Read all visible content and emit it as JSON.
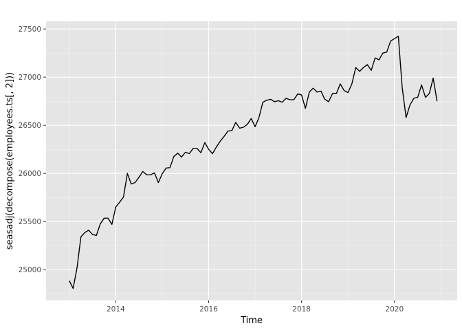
{
  "chart_data": {
    "type": "line",
    "title": "",
    "xlabel": "Time",
    "ylabel": "seasadj(decompose(employees.ts[, 2]))",
    "xlim": [
      2012.5,
      2021.35
    ],
    "ylim": [
      24680,
      27580
    ],
    "x_ticks": [
      2014,
      2016,
      2018,
      2020
    ],
    "x_tick_labels": [
      "2014",
      "2016",
      "2018",
      "2020"
    ],
    "y_ticks": [
      25000,
      25500,
      26000,
      26500,
      27000,
      27500
    ],
    "y_tick_labels": [
      "25000",
      "25500",
      "26000",
      "26500",
      "27000",
      "27500"
    ],
    "grid": true,
    "background": "#e5e5e5",
    "line_color": "#000000",
    "series": [
      {
        "x": [
          2013.0,
          2013.083,
          2013.167,
          2013.25,
          2013.333,
          2013.417,
          2013.5,
          2013.583,
          2013.667,
          2013.75,
          2013.833,
          2013.917,
          2014.0,
          2014.083,
          2014.167,
          2014.25,
          2014.333,
          2014.417,
          2014.5,
          2014.583,
          2014.667,
          2014.75,
          2014.833,
          2014.917,
          2015.0,
          2015.083,
          2015.167,
          2015.25,
          2015.333,
          2015.417,
          2015.5,
          2015.583,
          2015.667,
          2015.75,
          2015.833,
          2015.917,
          2016.0,
          2016.083,
          2016.167,
          2016.25,
          2016.333,
          2016.417,
          2016.5,
          2016.583,
          2016.667,
          2016.75,
          2016.833,
          2016.917,
          2017.0,
          2017.083,
          2017.167,
          2017.25,
          2017.333,
          2017.417,
          2017.5,
          2017.583,
          2017.667,
          2017.75,
          2017.833,
          2017.917,
          2018.0,
          2018.083,
          2018.167,
          2018.25,
          2018.333,
          2018.417,
          2018.5,
          2018.583,
          2018.667,
          2018.75,
          2018.833,
          2018.917,
          2019.0,
          2019.083,
          2019.167,
          2019.25,
          2019.333,
          2019.417,
          2019.5,
          2019.583,
          2019.667,
          2019.75,
          2019.833,
          2019.917,
          2020.0,
          2020.083,
          2020.167,
          2020.25,
          2020.333,
          2020.417,
          2020.5,
          2020.583,
          2020.667,
          2020.75,
          2020.833,
          2020.917
        ],
        "values": [
          24885,
          24805,
          25020,
          25340,
          25385,
          25410,
          25365,
          25355,
          25475,
          25535,
          25535,
          25470,
          25650,
          25700,
          25755,
          26000,
          25890,
          25905,
          25960,
          26020,
          25985,
          25985,
          26005,
          25905,
          25995,
          26055,
          26060,
          26175,
          26210,
          26170,
          26220,
          26205,
          26260,
          26260,
          26215,
          26320,
          26250,
          26205,
          26275,
          26335,
          26385,
          26440,
          26445,
          26530,
          26470,
          26480,
          26510,
          26570,
          26485,
          26580,
          26740,
          26760,
          26770,
          26745,
          26755,
          26740,
          26780,
          26765,
          26765,
          26825,
          26815,
          26675,
          26845,
          26885,
          26845,
          26855,
          26770,
          26745,
          26830,
          26830,
          26930,
          26860,
          26840,
          26930,
          27100,
          27060,
          27100,
          27130,
          27070,
          27200,
          27180,
          27250,
          27260,
          27375,
          27400,
          27425,
          26890,
          26580,
          26710,
          26780,
          26790,
          26920,
          26790,
          26830,
          26990,
          26750
        ]
      }
    ]
  }
}
